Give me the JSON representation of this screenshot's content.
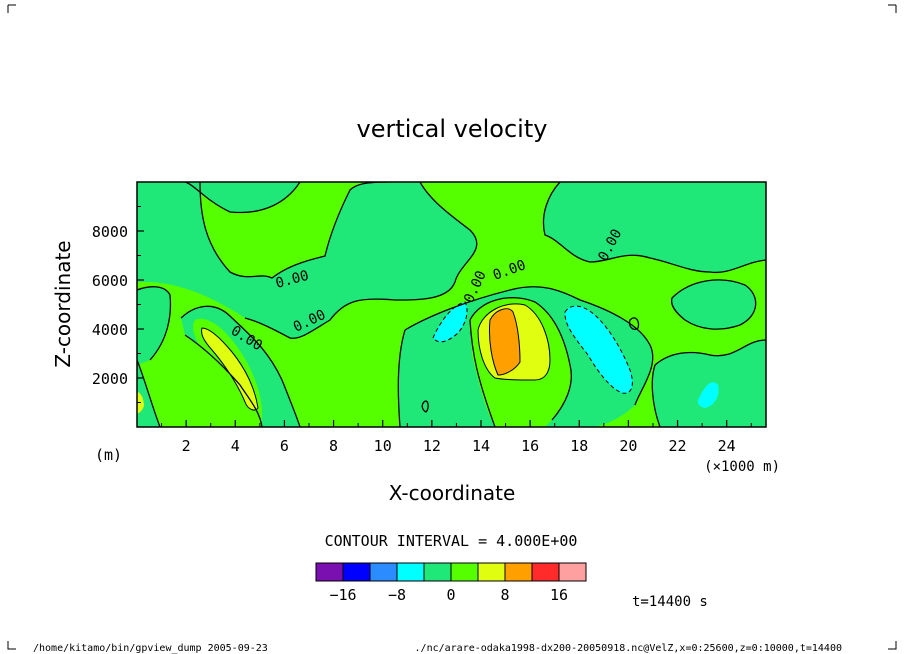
{
  "chart_data": {
    "type": "heatmap",
    "title": "vertical velocity",
    "xlabel": "X-coordinate",
    "ylabel": "Z-coordinate",
    "x_unit": "(×1000 m)",
    "y_unit": "(m)",
    "xlim": [
      0,
      25.6
    ],
    "ylim": [
      0,
      10000
    ],
    "x_ticks": [
      2,
      4,
      6,
      8,
      10,
      12,
      14,
      16,
      18,
      20,
      22,
      24
    ],
    "y_ticks": [
      2000,
      4000,
      6000,
      8000
    ],
    "contour_interval_text": "CONTOUR INTERVAL = 4.000E+00",
    "contour_labels": [
      "0.00",
      "0.00",
      "0.00",
      "0.00",
      "0.00",
      "0.00"
    ],
    "colorbar": {
      "bins": [
        {
          "lo": -20,
          "hi": -16,
          "color": "#7a10b0"
        },
        {
          "lo": -16,
          "hi": -12,
          "color": "#0000ff"
        },
        {
          "lo": -12,
          "hi": -8,
          "color": "#2a8cff"
        },
        {
          "lo": -8,
          "hi": -4,
          "color": "#00ffff"
        },
        {
          "lo": -4,
          "hi": 0,
          "color": "#20e878"
        },
        {
          "lo": 0,
          "hi": 4,
          "color": "#55ff00"
        },
        {
          "lo": 4,
          "hi": 8,
          "color": "#e0ff10"
        },
        {
          "lo": 8,
          "hi": 12,
          "color": "#ffa000"
        },
        {
          "lo": 12,
          "hi": 16,
          "color": "#ff2a2a"
        },
        {
          "lo": 16,
          "hi": 20,
          "color": "#ffa0a0"
        }
      ],
      "tick_labels": [
        {
          "value": -16,
          "label": "−16"
        },
        {
          "value": -8,
          "label": "−8"
        },
        {
          "value": 0,
          "label": "0"
        },
        {
          "value": 8,
          "label": "8"
        },
        {
          "value": 16,
          "label": "16"
        }
      ]
    },
    "time_label": "t=14400 s",
    "regions": [
      {
        "level": "0..4",
        "color": "#55ff00",
        "note": "background"
      },
      {
        "level": "-4..0",
        "color": "#20e878",
        "note": "negative zones"
      },
      {
        "level": "-8..-4",
        "color": "#00ffff",
        "x_center": 18.8,
        "z_center": 3200
      },
      {
        "level": "4..8",
        "color": "#e0ff10",
        "x_center": 15.0,
        "z_center": 3500
      },
      {
        "level": "8..12",
        "color": "#ffa000",
        "x_center": 14.9,
        "z_center": 3500
      }
    ]
  },
  "footer": {
    "left": "/home/kitamo/bin/gpview_dump  2005-09-23",
    "right": "./nc/arare-odaka1998-dx200-20050918.nc@VelZ,x=0:25600,z=0:10000,t=14400"
  }
}
